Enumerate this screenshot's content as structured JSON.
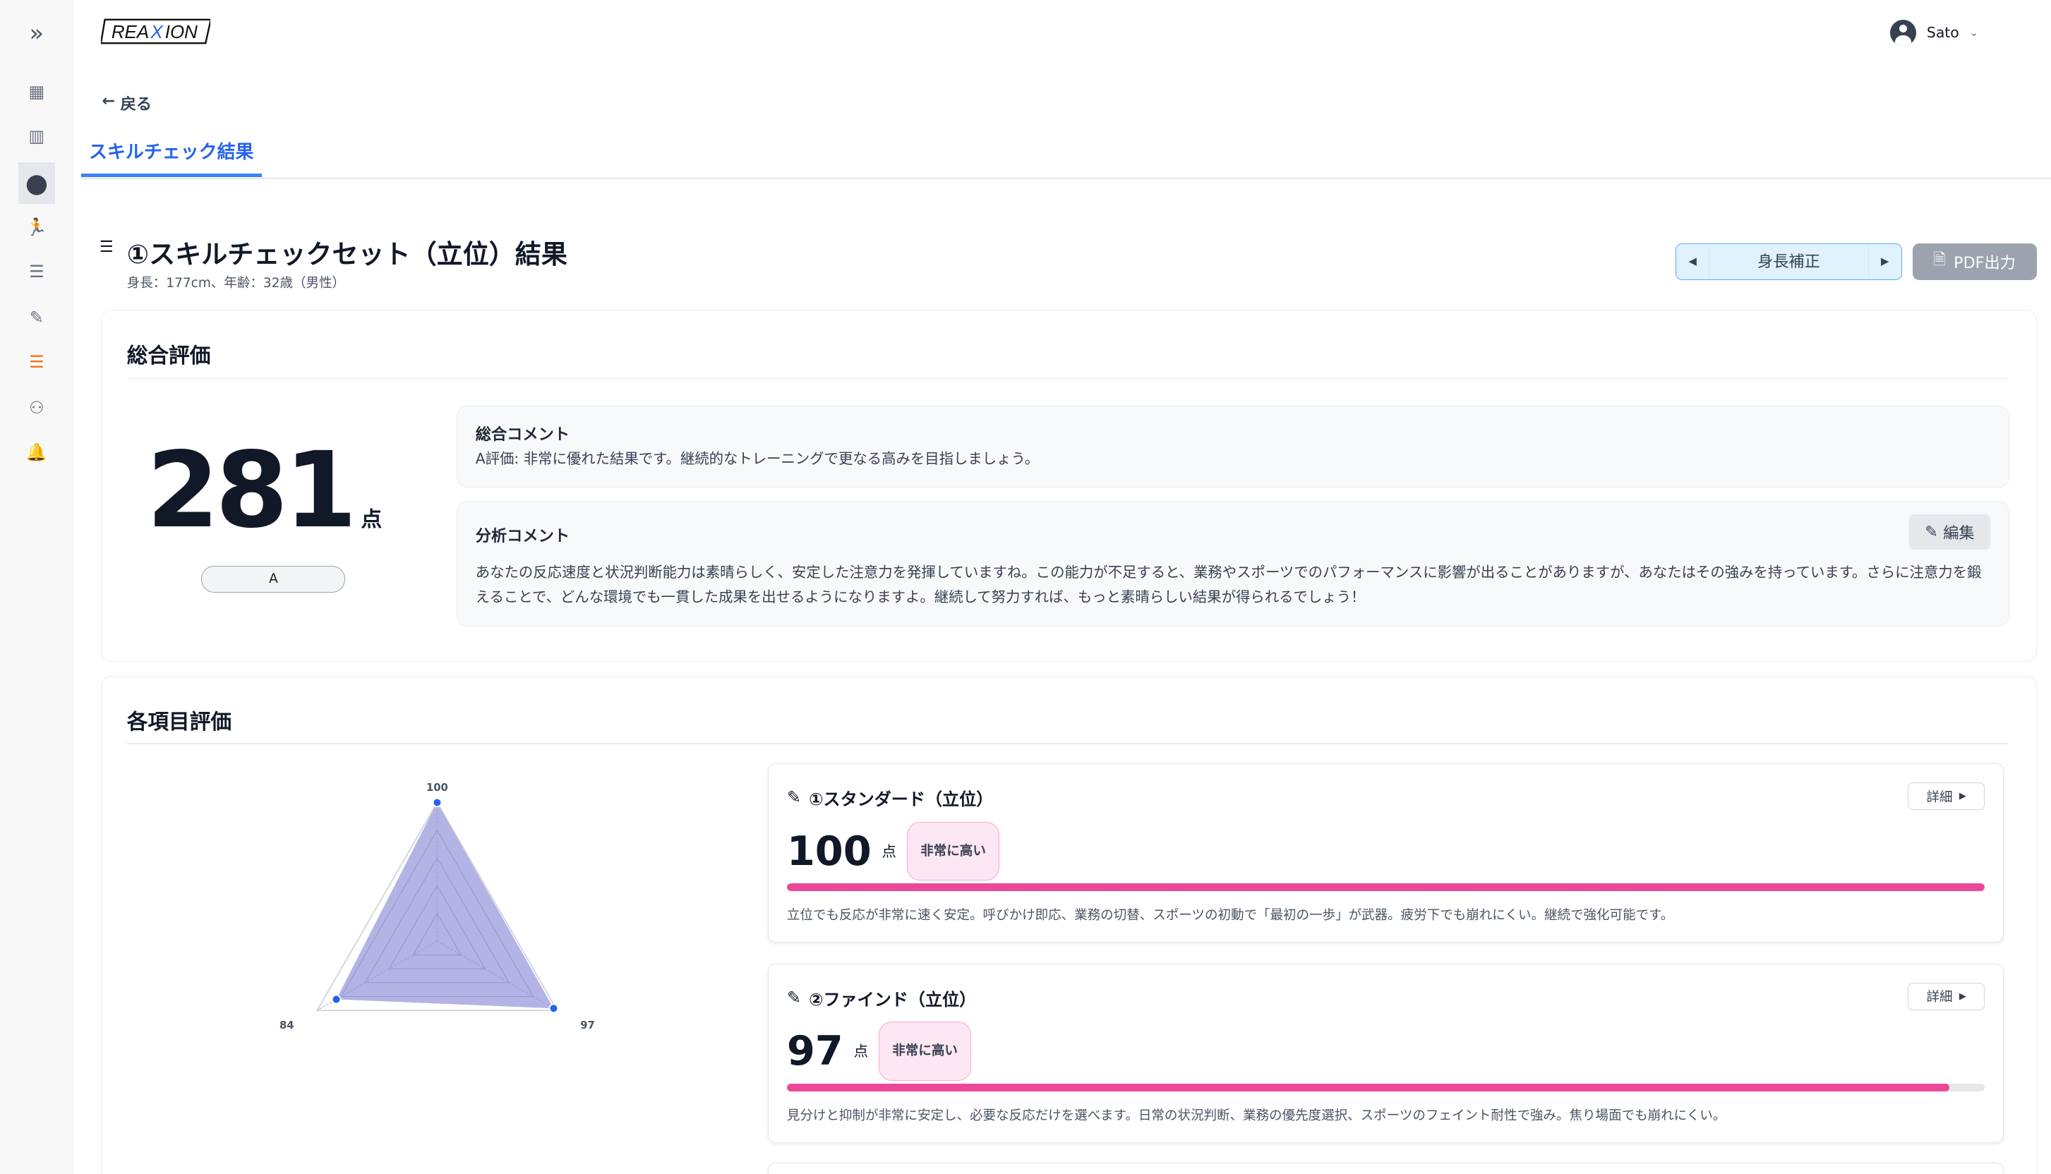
{
  "app": {
    "logo_text": "REAXION"
  },
  "user": {
    "name": "Sato"
  },
  "sidebar": {
    "items": [
      {
        "icon": "dashboard-icon",
        "glyph": "▦"
      },
      {
        "icon": "building-icon",
        "glyph": "▥"
      },
      {
        "icon": "user-circle-icon",
        "glyph": "●",
        "active": true
      },
      {
        "icon": "running-icon",
        "glyph": "🏃"
      },
      {
        "icon": "ordered-list-icon",
        "glyph": "☰"
      },
      {
        "icon": "edit-icon",
        "glyph": "✎"
      },
      {
        "icon": "ordered-list-icon",
        "glyph": "☰",
        "highlight": "#f97316"
      },
      {
        "icon": "users-gear-icon",
        "glyph": "⚇"
      },
      {
        "icon": "bell-icon",
        "glyph": "🔔"
      }
    ]
  },
  "nav": {
    "back_label": "戻る",
    "tab_label": "スキルチェック結果"
  },
  "header": {
    "title": "①スキルチェックセット（立位）結果",
    "subtitle": "身長：177cm、年齢：32歳（男性）",
    "toggle_label": "身長補正",
    "pdf_label": "PDF出力"
  },
  "overall": {
    "heading": "総合評価",
    "score": "281",
    "unit": "点",
    "grade": "A",
    "summary_heading": "総合コメント",
    "summary_text": "A評価: 非常に優れた結果です。継続的なトレーニングで更なる高みを目指しましょう。",
    "analysis_heading": "分析コメント",
    "edit_label": "編集",
    "analysis_text": "あなたの反応速度と状況判断能力は素晴らしく、安定した注意力を発揮していますね。この能力が不足すると、業務やスポーツでのパフォーマンスに影響が出ることがありますが、あなたはその強みを持っています。さらに注意力を鍛えることで、どんな環境でも一貫した成果を出せるようになりますよ。継続して努力すれば、もっと素晴らしい結果が得られるでしょう！"
  },
  "items_section": {
    "heading": "各項目評価",
    "detail_label": "詳細"
  },
  "items": [
    {
      "title": "①スタンダード（立位）",
      "score": "100",
      "unit": "点",
      "badge": "非常に高い",
      "progress": 100,
      "desc": "立位でも反応が非常に速く安定。呼びかけ即応、業務の切替、スポーツの初動で「最初の一歩」が武器。疲労下でも崩れにくい。継続で強化可能です。"
    },
    {
      "title": "②ファインド（立位）",
      "score": "97",
      "unit": "点",
      "badge": "非常に高い",
      "progress": 97,
      "desc": "見分けと抑制が非常に安定し、必要な反応だけを選べます。日常の状況判断、業務の優先度選択、スポーツのフェイント耐性で強み。焦り場面でも崩れにくい。"
    }
  ],
  "colors": {
    "accent": "#2563eb",
    "bar": "#ec4899",
    "radar_fill": "#b4b3e6",
    "radar_point": "#2563eb"
  },
  "chart_data": {
    "type": "radar",
    "axes_labels": [
      "100",
      "97",
      "84"
    ],
    "values": [
      100,
      97,
      84
    ],
    "range": [
      0,
      100
    ],
    "grid_levels": 5
  }
}
